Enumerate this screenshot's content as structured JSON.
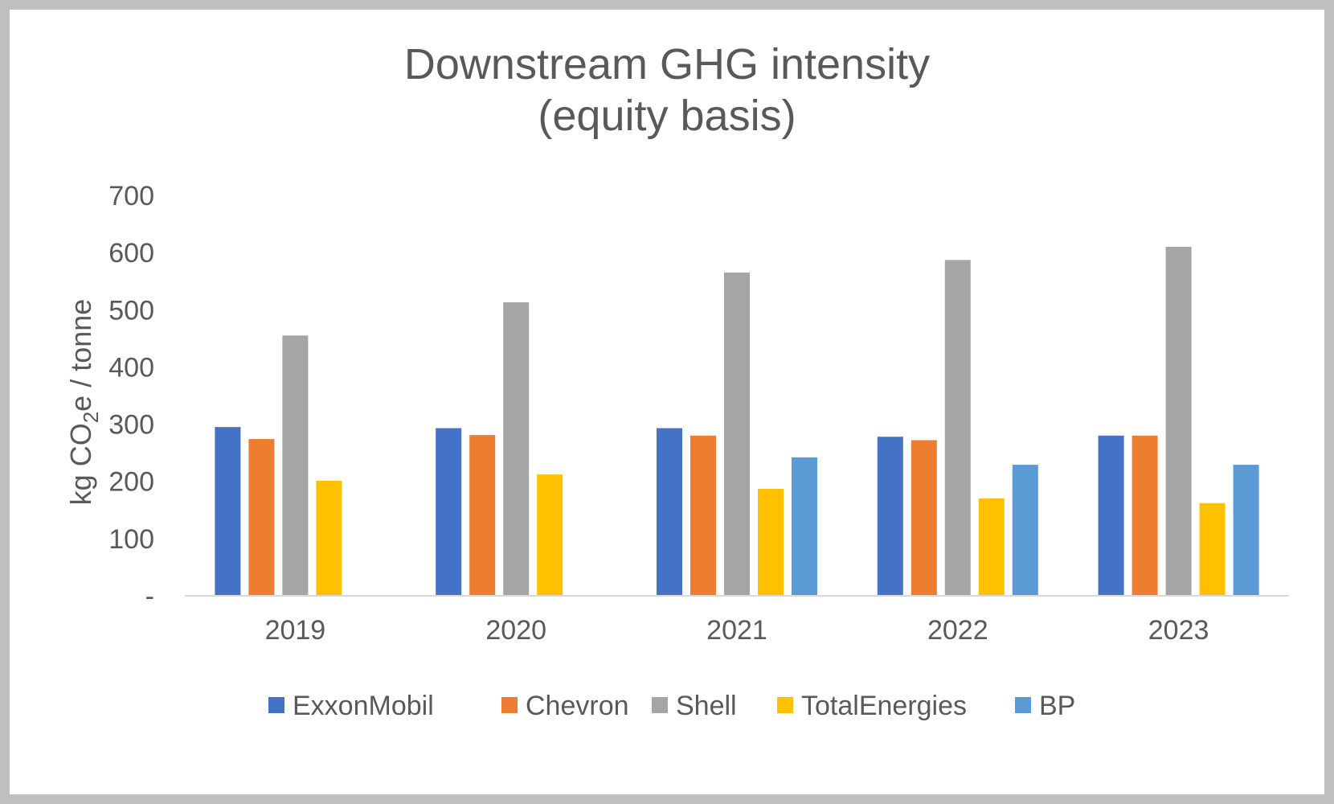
{
  "chart_data": {
    "type": "bar",
    "title_lines": [
      "Downstream GHG intensity",
      "(equity basis)"
    ],
    "ylabel_parts": [
      "kg CO",
      "2",
      "e / tonne"
    ],
    "categories": [
      "2019",
      "2020",
      "2021",
      "2022",
      "2023"
    ],
    "ylim": [
      0,
      700
    ],
    "y_ticks": [
      0,
      100,
      200,
      300,
      400,
      500,
      600,
      700
    ],
    "y_tick_labels": [
      "-",
      "100",
      "200",
      "300",
      "400",
      "500",
      "600",
      "700"
    ],
    "grid": false,
    "legend_position": "bottom",
    "series": [
      {
        "name": "ExxonMobil",
        "color": "#4472C4",
        "values": [
          295,
          293,
          293,
          278,
          280
        ]
      },
      {
        "name": "Chevron",
        "color": "#ED7D31",
        "values": [
          274,
          281,
          280,
          272,
          280
        ]
      },
      {
        "name": "Shell",
        "color": "#A5A5A5",
        "values": [
          455,
          513,
          565,
          587,
          610
        ]
      },
      {
        "name": "TotalEnergies",
        "color": "#FFC000",
        "values": [
          201,
          212,
          187,
          170,
          162
        ]
      },
      {
        "name": "BP",
        "color": "#5B9BD5",
        "values": [
          null,
          null,
          242,
          229,
          229
        ]
      }
    ],
    "axis_color": "#d9d9d9"
  }
}
